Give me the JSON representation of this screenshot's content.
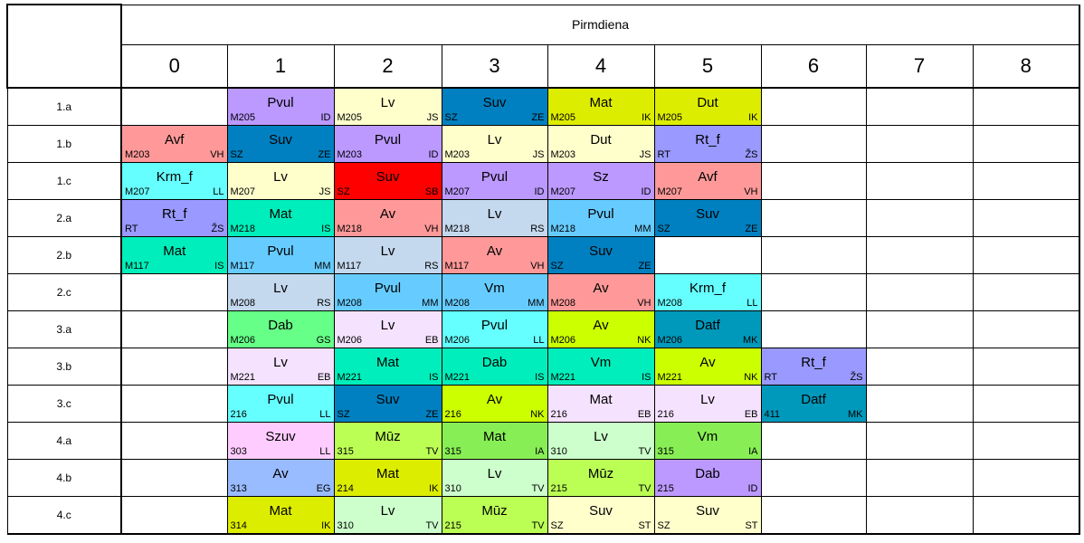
{
  "day": "Pirmdiena",
  "periods": [
    "0",
    "1",
    "2",
    "3",
    "4",
    "5",
    "6",
    "7",
    "8"
  ],
  "rows": [
    {
      "class": "1.a",
      "cells": [
        null,
        {
          "room": "M205",
          "subject": "Pvul",
          "teacher": "ID",
          "color": "#bb99ff"
        },
        {
          "room": "M205",
          "subject": "Lv",
          "teacher": "JS",
          "color": "#ffffcc"
        },
        {
          "room": "SZ",
          "subject": "Suv",
          "teacher": "ZE",
          "color": "#0080c0"
        },
        {
          "room": "M205",
          "subject": "Mat",
          "teacher": "IK",
          "color": "#dded00"
        },
        {
          "room": "M205",
          "subject": "Dut",
          "teacher": "IK",
          "color": "#dded00"
        },
        null,
        null,
        null
      ]
    },
    {
      "class": "1.b",
      "cells": [
        {
          "room": "M203",
          "subject": "Avf",
          "teacher": "VH",
          "color": "#ff9999"
        },
        {
          "room": "SZ",
          "subject": "Suv",
          "teacher": "ZE",
          "color": "#0080c0"
        },
        {
          "room": "M203",
          "subject": "Pvul",
          "teacher": "ID",
          "color": "#bb99ff"
        },
        {
          "room": "M203",
          "subject": "Lv",
          "teacher": "JS",
          "color": "#ffffcc"
        },
        {
          "room": "M203",
          "subject": "Dut",
          "teacher": "JS",
          "color": "#ffffcc"
        },
        {
          "room": "RT",
          "subject": "Rt_f",
          "teacher": "ŽS",
          "color": "#9999ff"
        },
        null,
        null,
        null
      ]
    },
    {
      "class": "1.c",
      "cells": [
        {
          "room": "M207",
          "subject": "Krm_f",
          "teacher": "LL",
          "color": "#66ffff"
        },
        {
          "room": "M207",
          "subject": "Lv",
          "teacher": "JS",
          "color": "#ffffcc"
        },
        {
          "room": "SZ",
          "subject": "Suv",
          "teacher": "SB",
          "color": "#ff0000"
        },
        {
          "room": "M207",
          "subject": "Pvul",
          "teacher": "ID",
          "color": "#bb99ff"
        },
        {
          "room": "M207",
          "subject": "Sz",
          "teacher": "ID",
          "color": "#bb99ff"
        },
        {
          "room": "M207",
          "subject": "Avf",
          "teacher": "VH",
          "color": "#ff9999"
        },
        null,
        null,
        null
      ]
    },
    {
      "class": "2.a",
      "cells": [
        {
          "room": "RT",
          "subject": "Rt_f",
          "teacher": "ŽS",
          "color": "#9999ff"
        },
        {
          "room": "M218",
          "subject": "Mat",
          "teacher": "IS",
          "color": "#00eebb"
        },
        {
          "room": "M218",
          "subject": "Av",
          "teacher": "VH",
          "color": "#ff9999"
        },
        {
          "room": "M218",
          "subject": "Lv",
          "teacher": "RS",
          "color": "#c4d8ee"
        },
        {
          "room": "M218",
          "subject": "Pvul",
          "teacher": "MM",
          "color": "#66ccff"
        },
        {
          "room": "SZ",
          "subject": "Suv",
          "teacher": "ZE",
          "color": "#0080c0"
        },
        null,
        null,
        null
      ]
    },
    {
      "class": "2.b",
      "cells": [
        {
          "room": "M117",
          "subject": "Mat",
          "teacher": "IS",
          "color": "#00eebb"
        },
        {
          "room": "M117",
          "subject": "Pvul",
          "teacher": "MM",
          "color": "#66ccff"
        },
        {
          "room": "M117",
          "subject": "Lv",
          "teacher": "RS",
          "color": "#c4d8ee"
        },
        {
          "room": "M117",
          "subject": "Av",
          "teacher": "VH",
          "color": "#ff9999"
        },
        {
          "room": "SZ",
          "subject": "Suv",
          "teacher": "ZE",
          "color": "#0080c0"
        },
        null,
        null,
        null,
        null
      ]
    },
    {
      "class": "2.c",
      "cells": [
        null,
        {
          "room": "M208",
          "subject": "Lv",
          "teacher": "RS",
          "color": "#c4d8ee"
        },
        {
          "room": "M208",
          "subject": "Pvul",
          "teacher": "MM",
          "color": "#66ccff"
        },
        {
          "room": "M208",
          "subject": "Vm",
          "teacher": "MM",
          "color": "#66ccff"
        },
        {
          "room": "M208",
          "subject": "Av",
          "teacher": "VH",
          "color": "#ff9999"
        },
        {
          "room": "M208",
          "subject": "Krm_f",
          "teacher": "LL",
          "color": "#66ffff"
        },
        null,
        null,
        null
      ]
    },
    {
      "class": "3.a",
      "cells": [
        null,
        {
          "room": "M206",
          "subject": "Dab",
          "teacher": "GS",
          "color": "#66ff88"
        },
        {
          "room": "M206",
          "subject": "Lv",
          "teacher": "EB",
          "color": "#f5e2ff"
        },
        {
          "room": "M206",
          "subject": "Pvul",
          "teacher": "LL",
          "color": "#66ffff"
        },
        {
          "room": "M206",
          "subject": "Av",
          "teacher": "NK",
          "color": "#ccff00"
        },
        {
          "room": "M206",
          "subject": "Datf",
          "teacher": "MK",
          "color": "#0099bb"
        },
        null,
        null,
        null
      ]
    },
    {
      "class": "3.b",
      "cells": [
        null,
        {
          "room": "M221",
          "subject": "Lv",
          "teacher": "EB",
          "color": "#f5e2ff"
        },
        {
          "room": "M221",
          "subject": "Mat",
          "teacher": "IS",
          "color": "#00eebb"
        },
        {
          "room": "M221",
          "subject": "Dab",
          "teacher": "IS",
          "color": "#00eebb"
        },
        {
          "room": "M221",
          "subject": "Vm",
          "teacher": "IS",
          "color": "#00eebb"
        },
        {
          "room": "M221",
          "subject": "Av",
          "teacher": "NK",
          "color": "#ccff00"
        },
        {
          "room": "RT",
          "subject": "Rt_f",
          "teacher": "ŽS",
          "color": "#9999ff"
        },
        null,
        null
      ]
    },
    {
      "class": "3.c",
      "cells": [
        null,
        {
          "room": "216",
          "subject": "Pvul",
          "teacher": "LL",
          "color": "#66ffff"
        },
        {
          "room": "SZ",
          "subject": "Suv",
          "teacher": "ZE",
          "color": "#0080c0"
        },
        {
          "room": "216",
          "subject": "Av",
          "teacher": "NK",
          "color": "#ccff00"
        },
        {
          "room": "216",
          "subject": "Mat",
          "teacher": "EB",
          "color": "#f5e2ff"
        },
        {
          "room": "216",
          "subject": "Lv",
          "teacher": "EB",
          "color": "#f5e2ff"
        },
        {
          "room": "411",
          "subject": "Datf",
          "teacher": "MK",
          "color": "#0099bb"
        },
        null,
        null
      ]
    },
    {
      "class": "4.a",
      "cells": [
        null,
        {
          "room": "303",
          "subject": "Szuv",
          "teacher": "LL",
          "color": "#ffccff"
        },
        {
          "room": "315",
          "subject": "Mūz",
          "teacher": "TV",
          "color": "#bbff55"
        },
        {
          "room": "315",
          "subject": "Mat",
          "teacher": "IA",
          "color": "#88ee55"
        },
        {
          "room": "310",
          "subject": "Lv",
          "teacher": "TV",
          "color": "#ccffcc"
        },
        {
          "room": "315",
          "subject": "Vm",
          "teacher": "IA",
          "color": "#88ee55"
        },
        null,
        null,
        null
      ]
    },
    {
      "class": "4.b",
      "cells": [
        null,
        {
          "room": "313",
          "subject": "Av",
          "teacher": "EG",
          "color": "#99bbff"
        },
        {
          "room": "214",
          "subject": "Mat",
          "teacher": "IK",
          "color": "#dded00"
        },
        {
          "room": "310",
          "subject": "Lv",
          "teacher": "TV",
          "color": "#ccffcc"
        },
        {
          "room": "215",
          "subject": "Mūz",
          "teacher": "TV",
          "color": "#bbff55"
        },
        {
          "room": "215",
          "subject": "Dab",
          "teacher": "ID",
          "color": "#bb99ff"
        },
        null,
        null,
        null
      ]
    },
    {
      "class": "4.c",
      "cells": [
        null,
        {
          "room": "314",
          "subject": "Mat",
          "teacher": "IK",
          "color": "#dded00"
        },
        {
          "room": "310",
          "subject": "Lv",
          "teacher": "TV",
          "color": "#ccffcc"
        },
        {
          "room": "215",
          "subject": "Mūz",
          "teacher": "TV",
          "color": "#bbff55"
        },
        {
          "room": "SZ",
          "subject": "Suv",
          "teacher": "ST",
          "color": "#ffffcc"
        },
        {
          "room": "SZ",
          "subject": "Suv",
          "teacher": "ST",
          "color": "#ffffcc"
        },
        null,
        null,
        null
      ]
    }
  ]
}
